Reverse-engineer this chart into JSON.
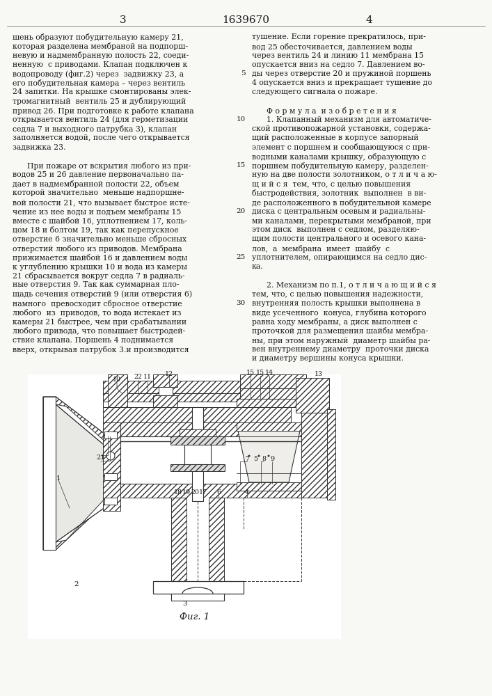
{
  "page_number_left": "3",
  "page_number_right": "4",
  "patent_number": "1639670",
  "left_column_text": [
    "шень образуют побудительную камеру 21,",
    "которая разделена мембраной на подпорш-",
    "невую и надмембранную полость 22, соеди-",
    "ненную  с приводами. Клапан подключен к",
    "водопроводу (фиг.2) через  задвижку 23, а",
    "его побудительная камера – через вентиль",
    "24 запитки. На крышке смонтированы элек-",
    "тромагнитный  вентиль 25 и дублирующий",
    "привод 26. При подготовке к работе клапана",
    "открывается вентиль 24 (для герметизации",
    "седла 7 и выходного патрубка 3), клапан",
    "заполняется водой, после чего открывается",
    "задвижка 23.",
    "",
    "      При пожаре от вскрытия любого из при-",
    "водов 25 и 26 давление первоначально па-",
    "дает в надмембранной полости 22, объем",
    "которой значительно  меньше надпоршне-",
    "вой полости 21, что вызывает быстрое исте-",
    "чение из нее воды и подъем мембраны 15",
    "вместе с шайбой 16, уплотнением 17, коль-",
    "цом 18 и болтом 19, так как перепускное",
    "отверстие 6 значительно меньше сбросных",
    "отверстий любого из приводов. Мембрана",
    "прижимается шайбой 16 и давлением воды",
    "к углублению крышки 10 и вода из камеры",
    "21 сбрасывается вокруг седла 7 в радиаль-",
    "ные отверстия 9. Так как суммарная пло-",
    "щадь сечения отверстий 9 (или отверстия 6)",
    "намного  превосходит сбросное отверстие",
    "любого  из  приводов, то вода истекает из",
    "камеры 21 быстрее, чем при срабатывании",
    "любого привода, что повышает быстродей-",
    "ствие клапана. Поршень 4 поднимается",
    "вверх, открывая патрубок 3.и производится"
  ],
  "right_column_text": [
    "тушение. Если горение прекратилось, при-",
    "вод 25 обесточивается, давлением воды",
    "через вентиль 24 и линию 11 мембрана 15",
    "опускается вниз на седло 7. Давлением во-",
    "ды через отверстие 20 и пружиной поршень",
    "4 опускается вниз и прекращает тушение до",
    "следующего сигнала о пожаре.",
    "",
    "      Ф о р м у л а  и з о б р е т е н и я",
    "      1. Клапанный механизм для автоматиче-",
    "ской противопожарной установки, содержа-",
    "щий расположенные в корпусе запорный",
    "элемент с поршнем и сообщающуюся с при-",
    "водными каналами крышку, образующую с",
    "поршнем побудительную камеру, разделен-",
    "ную на две полости золотником, о т л и ч а ю-",
    "щ и й с я  тем, что, с целью повышения",
    "быстродействия, золотник  выполнен  в ви-",
    "де расположенного в побудительной камере",
    "диска с центральным осевым и радиальны-",
    "ми каналами, перекрытыми мембраной, при",
    "этом диск  выполнен с седлом, разделяю-",
    "щим полости центрального и осевого кана-",
    "лов,  а  мембрана  имеет  шайбу  с",
    "уплотнителем, опирающимся на седло дис-",
    "ка.",
    "",
    "      2. Механизм по п.1, о т л и ч а ю щ и й с я",
    "тем, что, с целью повышения надежности,",
    "внутренняя полость крышки выполнена в",
    "виде усеченного  конуса, глубина которого",
    "равна ходу мембраны, а диск выполнен с",
    "проточкой для размещения шайбы мембра-",
    "ны, при этом наружный  диаметр шайбы ра-",
    "вен внутреннему диаметру  проточки диска",
    "и диаметру вершины конуса крышки."
  ],
  "line_numbers": {
    "4": "5",
    "9": "10",
    "14": "15",
    "19": "20",
    "24": "25",
    "29": "30"
  },
  "fig_caption": "Фиг. 1",
  "bg_color": "#f8f8f5",
  "text_color": "#1a1a1a",
  "drawing_color": "#333333",
  "hatch_color": "#333333"
}
